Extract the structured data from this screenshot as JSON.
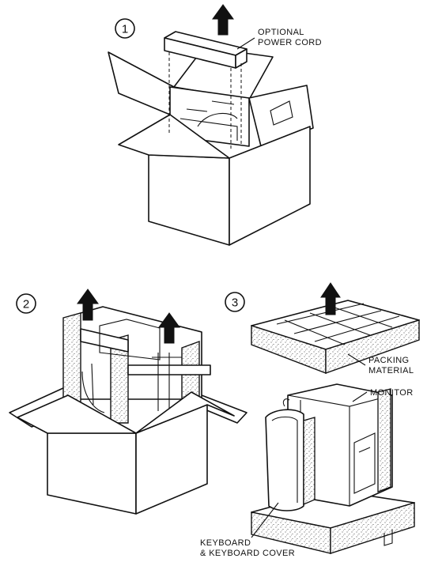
{
  "steps": {
    "one": "1",
    "two": "2",
    "three": "3"
  },
  "labels": {
    "optional_power_cord": [
      "OPTIONAL",
      "POWER CORD"
    ],
    "packing_material": [
      "PACKING",
      "MATERIAL"
    ],
    "monitor": "MONITOR",
    "keyboard": [
      "KEYBOARD",
      "& KEYBOARD COVER"
    ]
  }
}
